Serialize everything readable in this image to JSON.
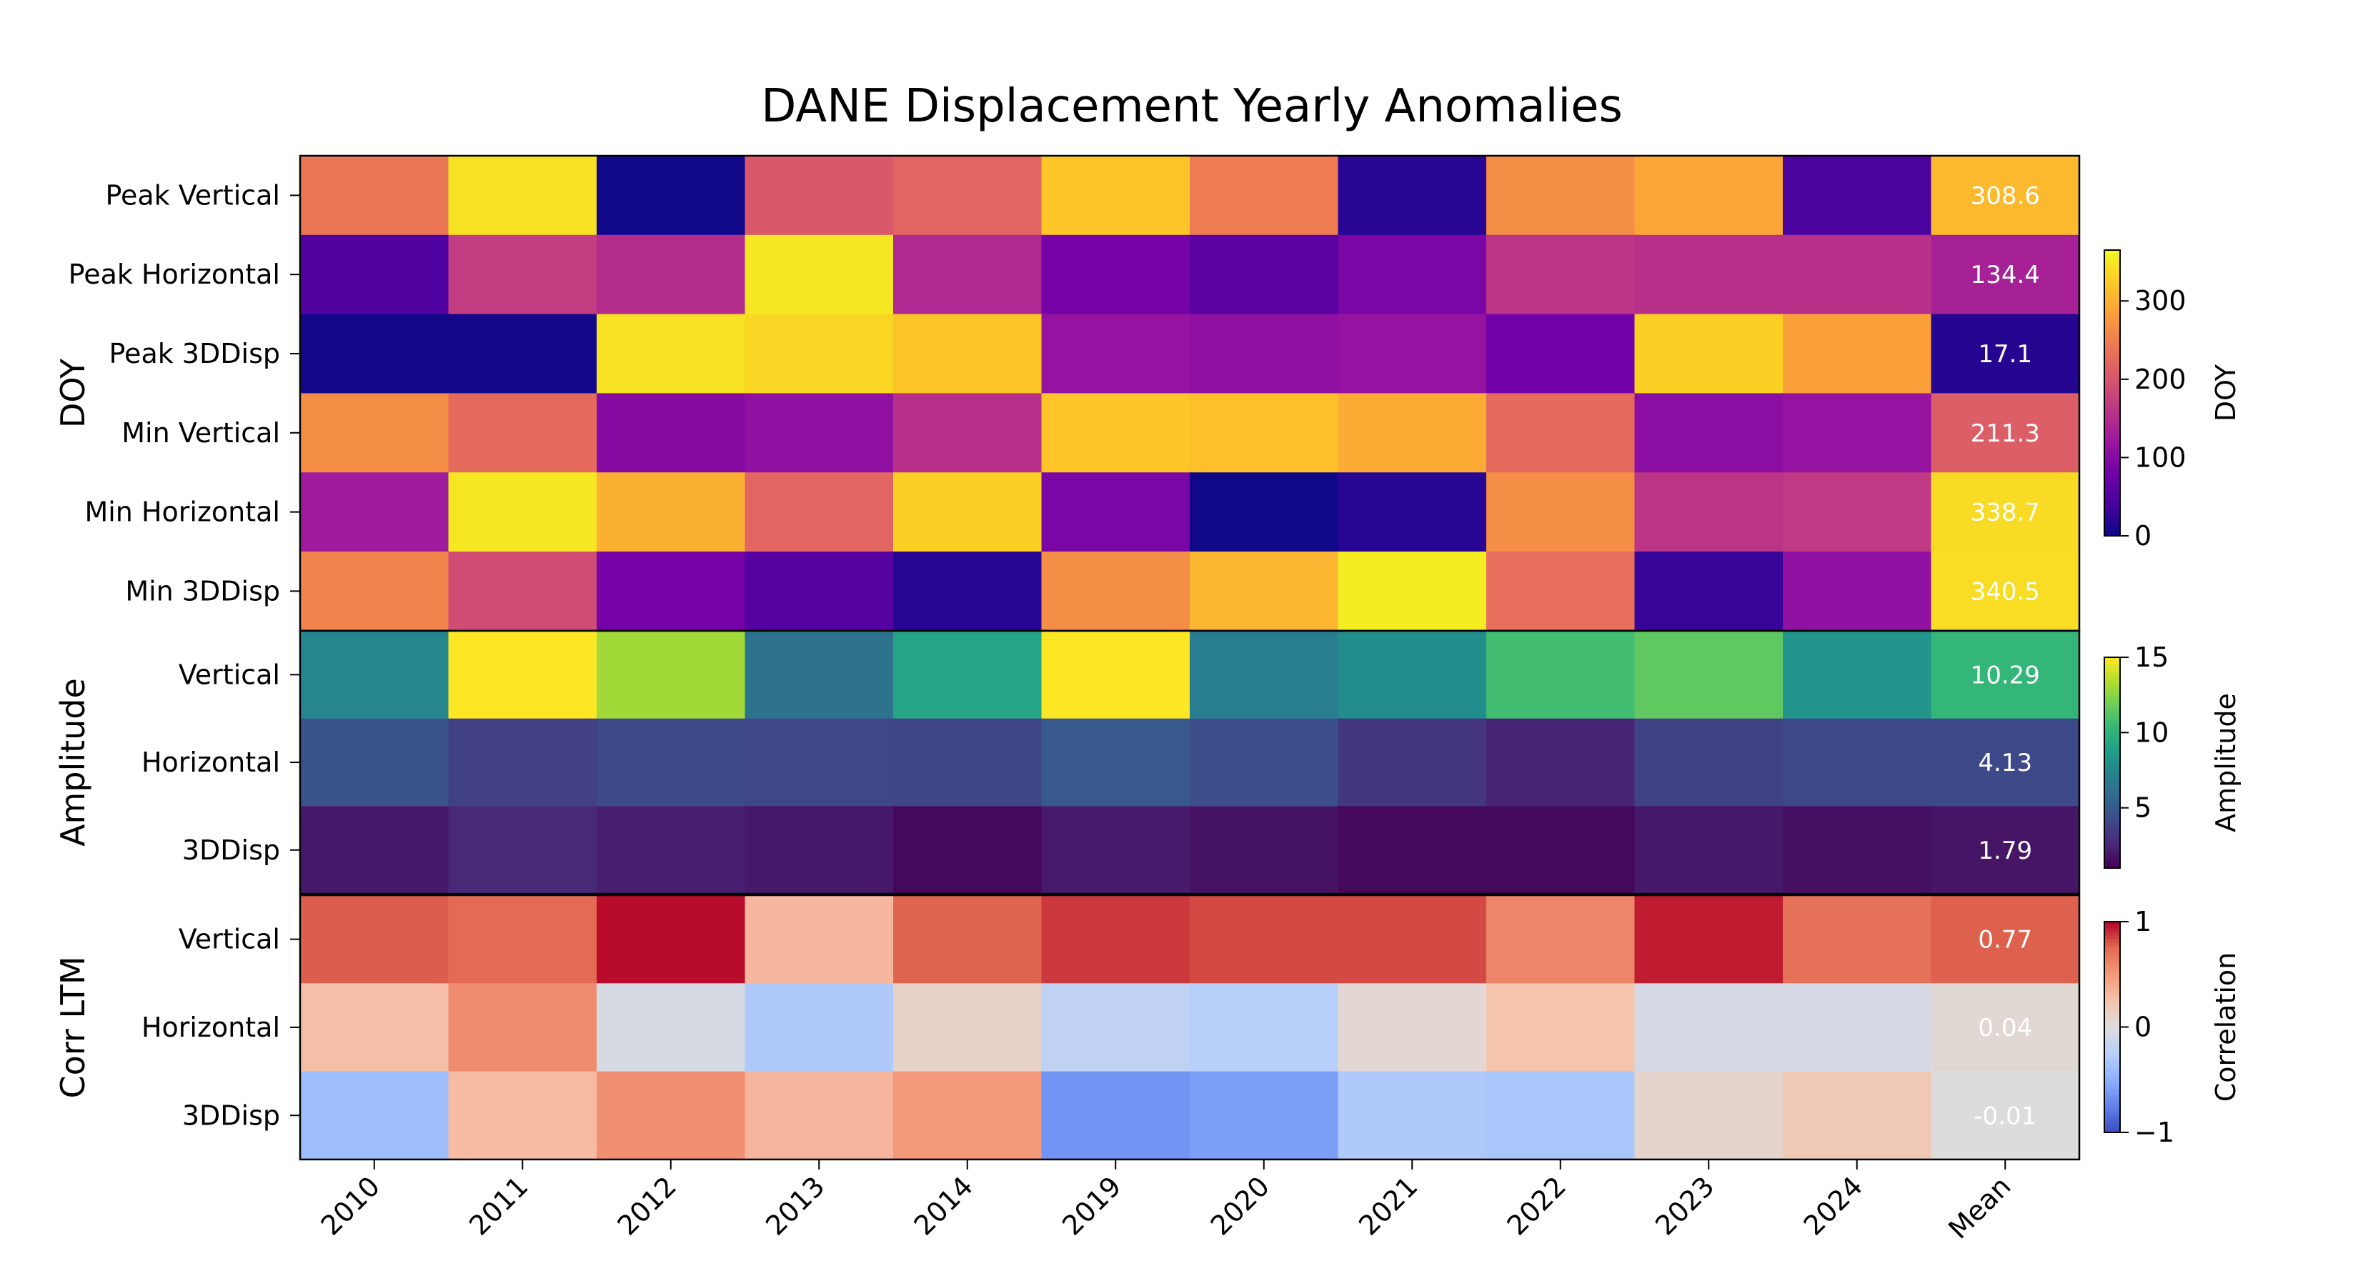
{
  "chart_data": {
    "type": "heatmap",
    "title": "DANE Displacement Yearly Anomalies",
    "columns": [
      "2010",
      "2011",
      "2012",
      "2013",
      "2014",
      "2019",
      "2020",
      "2021",
      "2022",
      "2023",
      "2024",
      "Mean"
    ],
    "panels": [
      {
        "group_label": "DOY",
        "colorbar": {
          "label": "DOY",
          "min": 0,
          "max": 365,
          "ticks": [
            "0",
            "100",
            "200",
            "300"
          ],
          "tick_values": [
            0,
            100,
            200,
            300
          ],
          "colormap": "plasma"
        },
        "rows": [
          {
            "label": "Peak Vertical",
            "values": [
              240,
              345,
              3,
              205,
              220,
              320,
              245,
              18,
              265,
              290,
              45,
              308.6
            ],
            "mean_label": "308.6"
          },
          {
            "label": "Peak Horizontal",
            "values": [
              50,
              170,
              150,
              350,
              145,
              85,
              60,
              90,
              160,
              155,
              155,
              134.4
            ],
            "mean_label": "134.4"
          },
          {
            "label": "Peak 3DDisp",
            "values": [
              5,
              5,
              345,
              335,
              320,
              115,
              110,
              115,
              80,
              330,
              285,
              17.1
            ],
            "mean_label": "17.1"
          },
          {
            "label": "Min Vertical",
            "values": [
              265,
              225,
              100,
              110,
              155,
              320,
              315,
              295,
              225,
              105,
              115,
              211.3
            ],
            "mean_label": "211.3"
          },
          {
            "label": "Min Horizontal",
            "values": [
              125,
              350,
              300,
              220,
              330,
              90,
              2,
              18,
              265,
              160,
              165,
              338.7
            ],
            "mean_label": "338.7"
          },
          {
            "label": "Min 3DDisp",
            "values": [
              255,
              190,
              85,
              55,
              18,
              265,
              305,
              355,
              230,
              30,
              110,
              340.5
            ],
            "mean_label": "340.5"
          }
        ]
      },
      {
        "group_label": "Amplitude",
        "colorbar": {
          "label": "Amplitude",
          "min": 1,
          "max": 15,
          "ticks": [
            "5",
            "10",
            "15"
          ],
          "tick_values": [
            5,
            10,
            15
          ],
          "colormap": "viridis"
        },
        "rows": [
          {
            "label": "Vertical",
            "values": [
              7.5,
              15.0,
              13.0,
              6.3,
              9.2,
              15.0,
              7.0,
              7.8,
              10.7,
              11.5,
              8.2,
              10.29
            ],
            "mean_label": "10.29"
          },
          {
            "label": "Horizontal",
            "values": [
              4.6,
              3.7,
              4.1,
              4.0,
              3.9,
              4.9,
              4.4,
              3.2,
              2.4,
              3.8,
              4.1,
              4.13
            ],
            "mean_label": "4.13"
          },
          {
            "label": "3DDisp",
            "values": [
              1.9,
              2.6,
              2.2,
              1.9,
              1.3,
              2.0,
              1.7,
              1.3,
              1.3,
              1.9,
              1.6,
              1.79
            ],
            "mean_label": "1.79"
          }
        ]
      },
      {
        "group_label": "Corr LTM",
        "colorbar": {
          "label": "Correlation",
          "min": -1,
          "max": 1,
          "ticks": [
            "−1",
            "0",
            "1"
          ],
          "tick_values": [
            -1,
            0,
            1
          ],
          "colormap": "coolwarm"
        },
        "rows": [
          {
            "label": "Vertical",
            "values": [
              0.78,
              0.74,
              0.98,
              0.32,
              0.76,
              0.87,
              0.83,
              0.83,
              0.6,
              0.94,
              0.71,
              0.77
            ],
            "mean_label": "0.77"
          },
          {
            "label": "Horizontal",
            "values": [
              0.28,
              0.57,
              -0.05,
              -0.3,
              0.1,
              -0.2,
              -0.25,
              0.05,
              0.25,
              -0.06,
              -0.06,
              0.04
            ],
            "mean_label": "0.04"
          },
          {
            "label": "3DDisp",
            "values": [
              -0.4,
              0.3,
              0.55,
              0.33,
              0.5,
              -0.65,
              -0.6,
              -0.3,
              -0.33,
              0.08,
              0.2,
              -0.01
            ],
            "mean_label": "-0.01"
          }
        ]
      }
    ]
  }
}
